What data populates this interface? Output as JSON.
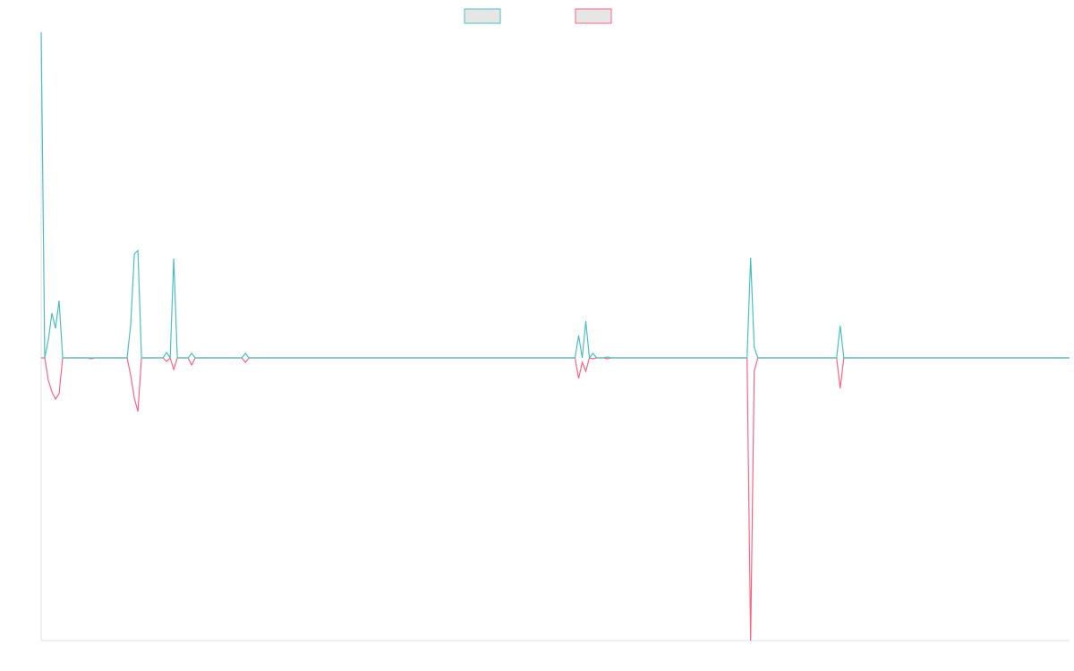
{
  "chart_data": {
    "type": "line",
    "x": [
      0,
      1,
      2,
      3,
      4,
      5,
      6,
      13,
      14,
      15,
      24,
      25,
      26,
      27,
      28,
      34,
      35,
      36,
      37,
      38,
      41,
      42,
      43,
      56,
      57,
      58,
      149,
      150,
      151,
      152,
      153,
      154,
      155,
      157,
      158,
      159,
      197,
      198,
      199,
      200,
      222,
      223,
      224,
      287
    ],
    "xlim": [
      0,
      287
    ],
    "ylim": [
      -316,
      364
    ],
    "series": [
      {
        "color": "#4bc0c0",
        "values": [
          364,
          0,
          20,
          50,
          33,
          64,
          0,
          0,
          0,
          0,
          0,
          38,
          116,
          120,
          0,
          0,
          6,
          0,
          111,
          0,
          0,
          5,
          0,
          0,
          5,
          0,
          0,
          25,
          0,
          41,
          0,
          5,
          0,
          0,
          1,
          0,
          0,
          112,
          12,
          0,
          0,
          36,
          0,
          0
        ]
      },
      {
        "color": "#ff6384",
        "values": [
          0,
          0,
          -25,
          -38,
          -46,
          -40,
          0,
          0,
          -1,
          0,
          0,
          -20,
          -45,
          -60,
          0,
          0,
          -4,
          0,
          -13,
          0,
          0,
          -8,
          0,
          0,
          -5,
          0,
          0,
          -23,
          -5,
          -15,
          0,
          -1,
          0,
          0,
          -1,
          0,
          0,
          -316,
          -15,
          0,
          0,
          -34,
          0,
          0
        ]
      }
    ],
    "legend": "top"
  }
}
